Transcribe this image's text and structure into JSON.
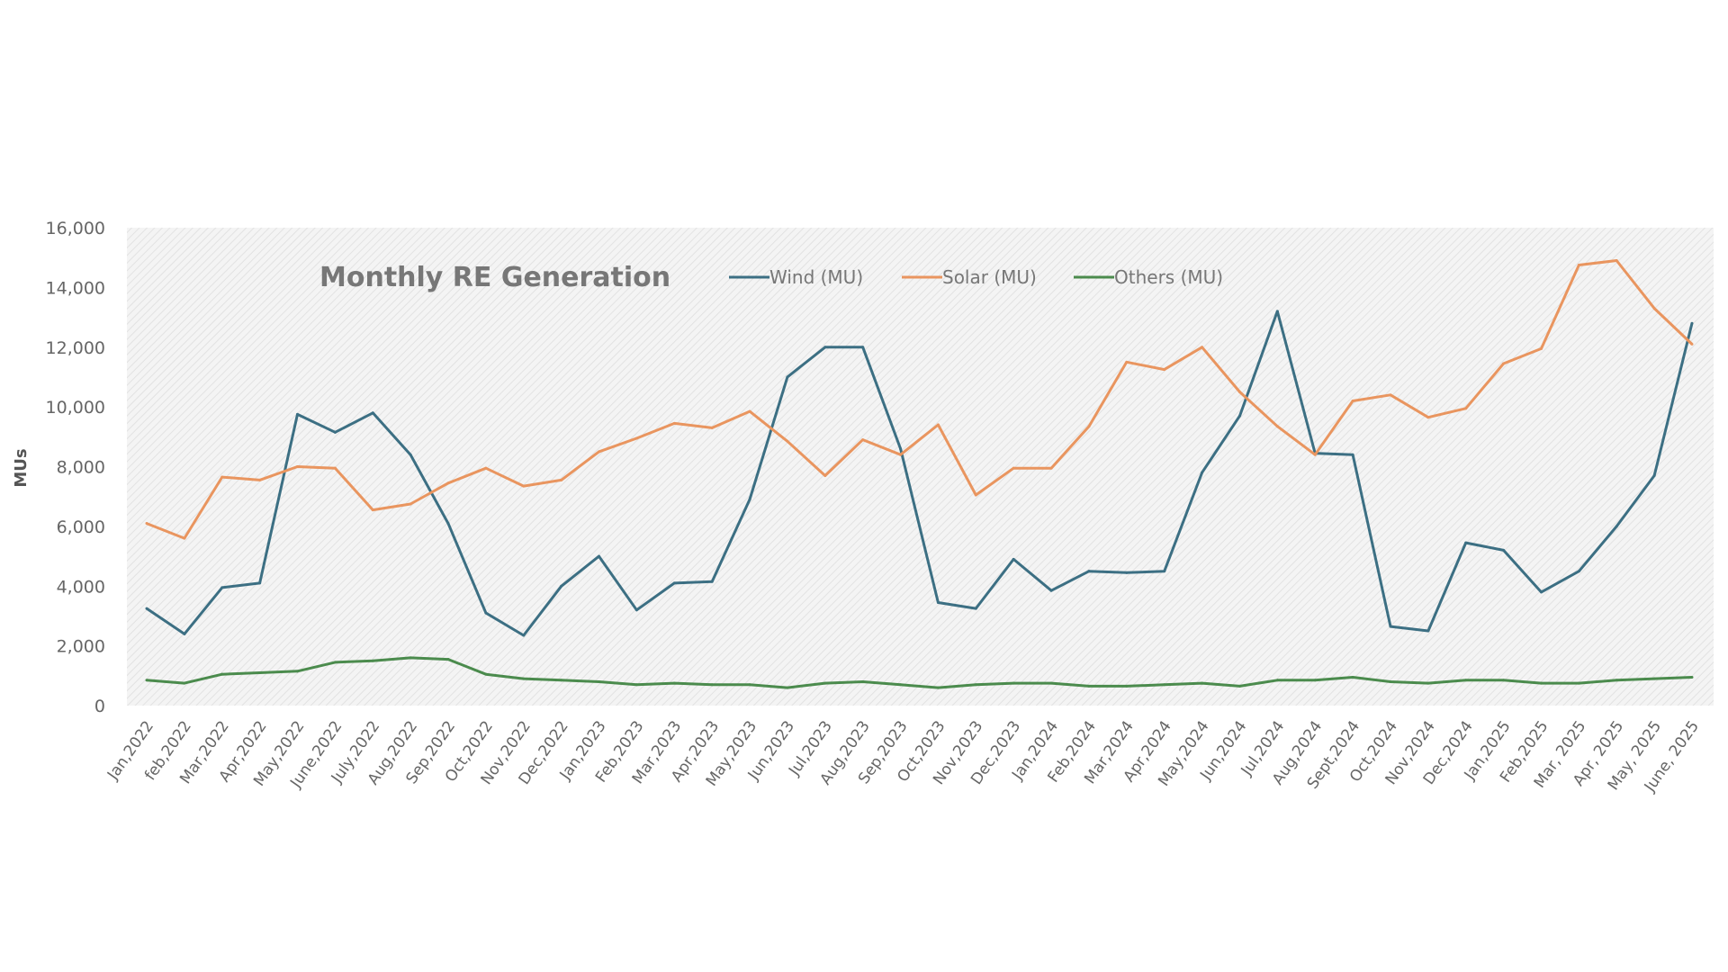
{
  "chart_data": {
    "type": "line",
    "title": "Monthly RE Generation",
    "xlabel": "",
    "ylabel": "MUs",
    "ylim": [
      0,
      16000
    ],
    "yticks": [
      "0",
      "2,000",
      "4,000",
      "6,000",
      "8,000",
      "10,000",
      "12,000",
      "14,000",
      "16,000"
    ],
    "ytick_values": [
      0,
      2000,
      4000,
      6000,
      8000,
      10000,
      12000,
      14000,
      16000
    ],
    "grid": false,
    "legend_position": "top",
    "categories": [
      "Jan,2022",
      "feb,2022",
      "Mar,2022",
      "Apr,2022",
      "May,2022",
      "June,2022",
      "July,2022",
      "Aug,2022",
      "Sep,2022",
      "Oct,2022",
      "Nov,2022",
      "Dec,2022",
      "Jan,2023",
      "Feb,2023",
      "Mar,2023",
      "Apr,2023",
      "May,2023",
      "Jun,2023",
      "Jul,2023",
      "Aug,2023",
      "Sep,2023",
      "Oct,2023",
      "Nov,2023",
      "Dec,2023",
      "Jan,2024",
      "Feb,2024",
      "Mar,2024",
      "Apr,2024",
      "May,2024",
      "Jun,2024",
      "Jul,2024",
      "Aug,2024",
      "Sept,2024",
      "Oct,2024",
      "Nov,2024",
      "Dec,2024",
      "Jan,2025",
      "Feb,2025",
      "Mar, 2025",
      "Apr, 2025",
      "May, 2025",
      "June, 2025"
    ],
    "series": [
      {
        "name": "Wind (MU)",
        "color": "#3c6f83",
        "values": [
          3250,
          2400,
          3950,
          4100,
          9750,
          9150,
          9800,
          8400,
          6100,
          3100,
          2350,
          4000,
          5000,
          3200,
          4100,
          4150,
          6900,
          11000,
          12000,
          12000,
          8600,
          3450,
          3250,
          4900,
          3850,
          4500,
          4450,
          4500,
          7800,
          9700,
          13200,
          8450,
          8400,
          2650,
          2500,
          5450,
          5200,
          3800,
          4500,
          6000,
          7700,
          12800
        ]
      },
      {
        "name": "Solar (MU)",
        "color": "#e9955f",
        "values": [
          6100,
          5600,
          7650,
          7550,
          8000,
          7950,
          6550,
          6750,
          7450,
          7950,
          7350,
          7550,
          8500,
          8950,
          9450,
          9300,
          9850,
          8850,
          7700,
          8900,
          8400,
          9400,
          7050,
          7950,
          7950,
          9350,
          11500,
          11250,
          12000,
          10500,
          9350,
          8400,
          10200,
          10400,
          9650,
          9950,
          11450,
          11950,
          14750,
          14900,
          13300,
          12100
        ]
      },
      {
        "name": "Others (MU)",
        "color": "#4b8b4d",
        "values": [
          850,
          750,
          1050,
          1100,
          1150,
          1450,
          1500,
          1600,
          1550,
          1050,
          900,
          850,
          800,
          700,
          750,
          700,
          700,
          600,
          750,
          800,
          700,
          600,
          700,
          750,
          750,
          650,
          650,
          700,
          750,
          650,
          850,
          850,
          950,
          800,
          750,
          850,
          850,
          750,
          750,
          850,
          900,
          950
        ]
      }
    ]
  }
}
